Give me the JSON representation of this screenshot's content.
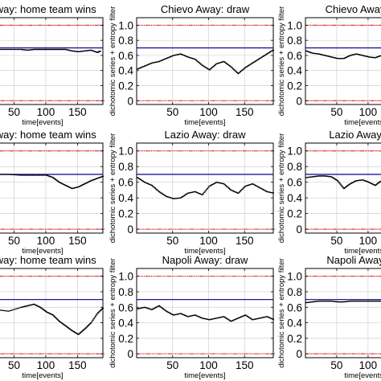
{
  "colors": {
    "background": "#ffffff",
    "grid": "#d0d0d0",
    "threshold": "#1a1aa0",
    "series": "#000000",
    "dichotomic": "#e02020"
  },
  "chart_data": [
    {
      "type": "scatter",
      "title": "Away: home team wins",
      "xlabel": "time[events]",
      "ylabel": "",
      "xlim": [
        0,
        190
      ],
      "ylim": [
        -0.05,
        1.1
      ],
      "xticks": [
        50,
        100,
        150
      ],
      "xtick_labels": [
        "50",
        "100",
        "150"
      ],
      "yticks": [
        0,
        0.2,
        0.4,
        0.6,
        0.8,
        1.0
      ],
      "ytick_labels": [],
      "grid": true,
      "threshold": 0.7,
      "series": [
        {
          "x": [
            0,
            20,
            40,
            60,
            70,
            80,
            90,
            100,
            110,
            120,
            130,
            140,
            150,
            160,
            170,
            180,
            185
          ],
          "y": [
            0.68,
            0.68,
            0.68,
            0.68,
            0.67,
            0.68,
            0.68,
            0.68,
            0.68,
            0.68,
            0.68,
            0.66,
            0.65,
            0.66,
            0.67,
            0.64,
            0.66
          ]
        }
      ]
    },
    {
      "type": "scatter",
      "title": "Chievo Away: draw",
      "xlabel": "time[events]",
      "ylabel": "dichotomic series + entropy filter",
      "xlim": [
        0,
        190
      ],
      "ylim": [
        -0.05,
        1.1
      ],
      "xticks": [
        50,
        100,
        150
      ],
      "xtick_labels": [
        "50",
        "100",
        "150"
      ],
      "yticks": [
        0,
        0.2,
        0.4,
        0.6,
        0.8,
        1.0
      ],
      "ytick_labels": [
        "0",
        "0.2",
        "0.4",
        "0.6",
        "0.8",
        "1.0"
      ],
      "grid": true,
      "threshold": 0.7,
      "series": [
        {
          "x": [
            0,
            10,
            20,
            30,
            40,
            50,
            60,
            70,
            80,
            90,
            100,
            110,
            120,
            130,
            140,
            150,
            160,
            170,
            180,
            190
          ],
          "y": [
            0.42,
            0.46,
            0.5,
            0.52,
            0.56,
            0.6,
            0.62,
            0.58,
            0.55,
            0.47,
            0.41,
            0.49,
            0.52,
            0.45,
            0.36,
            0.44,
            0.5,
            0.56,
            0.62,
            0.68
          ]
        }
      ]
    },
    {
      "type": "scatter",
      "title": "Chievo Away: aw",
      "xlabel": "time[events]",
      "ylabel": "dichotomic series + entropy filter",
      "xlim": [
        0,
        190
      ],
      "ylim": [
        -0.05,
        1.1
      ],
      "xticks": [
        50,
        100
      ],
      "xtick_labels": [
        "50",
        "100"
      ],
      "yticks": [
        0,
        0.2,
        0.4,
        0.6,
        0.8,
        1.0
      ],
      "ytick_labels": [
        "0",
        "0.2",
        "0.4",
        "0.6",
        "0.8",
        "1.0"
      ],
      "grid": true,
      "threshold": 0.7,
      "series": [
        {
          "x": [
            0,
            10,
            20,
            30,
            40,
            50,
            60,
            70,
            80,
            90,
            100,
            110,
            120
          ],
          "y": [
            0.66,
            0.63,
            0.62,
            0.6,
            0.58,
            0.56,
            0.56,
            0.6,
            0.62,
            0.6,
            0.58,
            0.57,
            0.6
          ]
        }
      ]
    },
    {
      "type": "scatter",
      "title": "Away: home team wins",
      "xlabel": "time[events]",
      "ylabel": "",
      "xlim": [
        0,
        190
      ],
      "ylim": [
        -0.05,
        1.1
      ],
      "xticks": [
        50,
        100,
        150
      ],
      "xtick_labels": [
        "50",
        "100",
        "150"
      ],
      "yticks": [
        0,
        0.2,
        0.4,
        0.6,
        0.8,
        1.0
      ],
      "ytick_labels": [],
      "grid": true,
      "threshold": 0.7,
      "series": [
        {
          "x": [
            0,
            20,
            40,
            60,
            80,
            100,
            110,
            120,
            130,
            140,
            150,
            160,
            170,
            180,
            190
          ],
          "y": [
            0.7,
            0.7,
            0.7,
            0.69,
            0.69,
            0.69,
            0.66,
            0.6,
            0.56,
            0.52,
            0.54,
            0.58,
            0.62,
            0.65,
            0.68
          ]
        }
      ]
    },
    {
      "type": "scatter",
      "title": "Lazio Away: draw",
      "xlabel": "time[events]",
      "ylabel": "dichotomic series + entropy filter",
      "xlim": [
        0,
        190
      ],
      "ylim": [
        -0.05,
        1.1
      ],
      "xticks": [
        50,
        100,
        150
      ],
      "xtick_labels": [
        "50",
        "100",
        "150"
      ],
      "yticks": [
        0,
        0.2,
        0.4,
        0.6,
        0.8,
        1.0
      ],
      "ytick_labels": [
        "0",
        "0.2",
        "0.4",
        "0.6",
        "0.8",
        "1.0"
      ],
      "grid": true,
      "threshold": 0.7,
      "series": [
        {
          "x": [
            0,
            10,
            20,
            30,
            40,
            50,
            60,
            70,
            80,
            90,
            100,
            110,
            120,
            130,
            140,
            150,
            160,
            170,
            180,
            190
          ],
          "y": [
            0.66,
            0.6,
            0.56,
            0.48,
            0.42,
            0.39,
            0.4,
            0.46,
            0.48,
            0.44,
            0.55,
            0.6,
            0.58,
            0.5,
            0.46,
            0.55,
            0.58,
            0.53,
            0.48,
            0.46
          ]
        }
      ]
    },
    {
      "type": "scatter",
      "title": "Lazio Away: aw",
      "xlabel": "time[events]",
      "ylabel": "dichotomic series + entropy filter",
      "xlim": [
        0,
        190
      ],
      "ylim": [
        -0.05,
        1.1
      ],
      "xticks": [
        50,
        100
      ],
      "xtick_labels": [
        "50",
        "100"
      ],
      "yticks": [
        0,
        0.2,
        0.4,
        0.6,
        0.8,
        1.0
      ],
      "ytick_labels": [
        "0",
        "0.2",
        "0.4",
        "0.6",
        "0.8",
        "1.0"
      ],
      "grid": true,
      "threshold": 0.7,
      "series": [
        {
          "x": [
            0,
            10,
            20,
            30,
            40,
            50,
            60,
            70,
            80,
            90,
            100,
            110,
            120
          ],
          "y": [
            0.66,
            0.67,
            0.68,
            0.68,
            0.67,
            0.62,
            0.52,
            0.58,
            0.62,
            0.63,
            0.6,
            0.56,
            0.62
          ]
        }
      ]
    },
    {
      "type": "scatter",
      "title": "Away: home team wins",
      "xlabel": "time[events]",
      "ylabel": "",
      "xlim": [
        0,
        190
      ],
      "ylim": [
        -0.05,
        1.1
      ],
      "xticks": [
        50,
        100,
        150
      ],
      "xtick_labels": [
        "50",
        "100",
        "150"
      ],
      "yticks": [
        0,
        0.2,
        0.4,
        0.6,
        0.8,
        1.0
      ],
      "ytick_labels": [],
      "grid": true,
      "threshold": 0.7,
      "series": [
        {
          "x": [
            0,
            20,
            40,
            60,
            70,
            80,
            90,
            100,
            110,
            120,
            130,
            140,
            150,
            160,
            170,
            180,
            190
          ],
          "y": [
            0.58,
            0.57,
            0.55,
            0.6,
            0.62,
            0.64,
            0.6,
            0.54,
            0.5,
            0.42,
            0.36,
            0.3,
            0.25,
            0.32,
            0.4,
            0.52,
            0.6
          ]
        }
      ]
    },
    {
      "type": "scatter",
      "title": "Napoli Away: draw",
      "xlabel": "time[events]",
      "ylabel": "dichotomic series + entropy filter",
      "xlim": [
        0,
        190
      ],
      "ylim": [
        -0.05,
        1.1
      ],
      "xticks": [
        50,
        100,
        150
      ],
      "xtick_labels": [
        "50",
        "100",
        "150"
      ],
      "yticks": [
        0,
        0.2,
        0.4,
        0.6,
        0.8,
        1.0
      ],
      "ytick_labels": [
        "0",
        "0.2",
        "0.4",
        "0.6",
        "0.8",
        "1.0"
      ],
      "grid": true,
      "threshold": 0.7,
      "series": [
        {
          "x": [
            0,
            10,
            20,
            30,
            40,
            50,
            60,
            70,
            80,
            90,
            100,
            110,
            120,
            130,
            140,
            150,
            160,
            170,
            180,
            190
          ],
          "y": [
            0.58,
            0.6,
            0.57,
            0.62,
            0.55,
            0.5,
            0.52,
            0.48,
            0.5,
            0.46,
            0.44,
            0.46,
            0.48,
            0.42,
            0.46,
            0.5,
            0.44,
            0.46,
            0.48,
            0.44
          ]
        }
      ]
    },
    {
      "type": "scatter",
      "title": "Napoli Away: aw",
      "xlabel": "time[events]",
      "ylabel": "dichotomic series + entropy filter",
      "xlim": [
        0,
        190
      ],
      "ylim": [
        -0.05,
        1.1
      ],
      "xticks": [
        50,
        100
      ],
      "xtick_labels": [
        "50",
        "100"
      ],
      "yticks": [
        0,
        0.2,
        0.4,
        0.6,
        0.8,
        1.0
      ],
      "ytick_labels": [
        "0",
        "0.2",
        "0.4",
        "0.6",
        "0.8",
        "1.0"
      ],
      "grid": true,
      "threshold": 0.7,
      "series": [
        {
          "x": [
            0,
            10,
            20,
            30,
            40,
            50,
            60,
            70,
            80,
            90,
            100,
            110,
            120
          ],
          "y": [
            0.66,
            0.67,
            0.68,
            0.68,
            0.68,
            0.67,
            0.67,
            0.68,
            0.68,
            0.68,
            0.68,
            0.68,
            0.68
          ]
        }
      ]
    }
  ]
}
